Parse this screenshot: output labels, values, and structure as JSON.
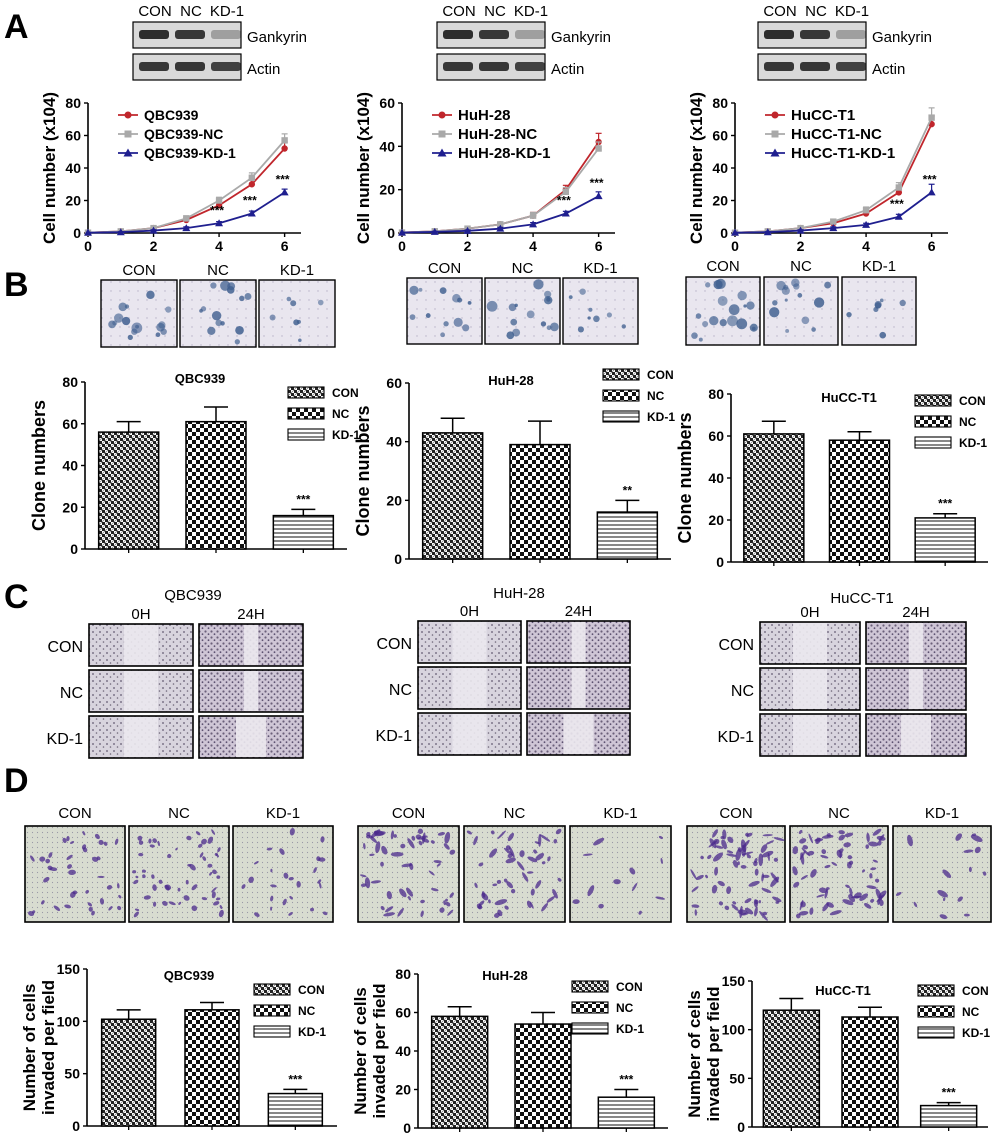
{
  "panel_letters": [
    "A",
    "B",
    "C",
    "D"
  ],
  "colors": {
    "con": "#c0262c",
    "nc": "#a9a9a9",
    "kd": "#1f1f8f",
    "blot_bg": "#d9d9d9",
    "colony_bg": "#eeeaf2",
    "wound_cells": "#8a8296",
    "invasion_bg": "#dde3cf",
    "invasion_cells": "#4b2a8c"
  },
  "panelA": {
    "blot_lanes": [
      "CON",
      "NC",
      "KD-1"
    ],
    "blot_rows": [
      "Gankyrin",
      "Actin"
    ],
    "ylabel": "Cell number (x10",
    "ylabel_exp": "4",
    "ylabel_close": ")"
  },
  "panelB": {
    "image_labels": [
      "CON",
      "NC",
      "KD-1"
    ],
    "ylabel": "Clone numbers"
  },
  "panelC": {
    "cells": [
      "QBC939",
      "HuH-28",
      "HuCC-T1"
    ],
    "times": [
      "0H",
      "24H"
    ],
    "rows": [
      "CON",
      "NC",
      "KD-1"
    ]
  },
  "panelD": {
    "image_labels": [
      "CON",
      "NC",
      "KD-1"
    ],
    "ylabel1": "Number of cells",
    "ylabel2": "invaded per field"
  },
  "chart_data": [
    {
      "id": "A1",
      "type": "line",
      "x": [
        0,
        1,
        2,
        3,
        4,
        5,
        6
      ],
      "xticks": [
        0,
        2,
        4,
        6
      ],
      "xlim": [
        0,
        6.5
      ],
      "ylim": [
        0,
        80
      ],
      "yticks": [
        0,
        20,
        40,
        60,
        80
      ],
      "ylabel": "Cell number (x10⁴)",
      "series": [
        {
          "name": "QBC939",
          "values": [
            0.2,
            1,
            3,
            8,
            17,
            30,
            52
          ],
          "err": [
            0,
            0.5,
            0.8,
            1.5,
            2,
            3,
            4
          ]
        },
        {
          "name": "QBC939-NC",
          "values": [
            0.2,
            1,
            3,
            9,
            20,
            34,
            57
          ],
          "err": [
            0,
            0.5,
            0.8,
            1.5,
            2,
            3,
            4
          ]
        },
        {
          "name": "QBC939-KD-1",
          "values": [
            0.2,
            0.5,
            1.5,
            3,
            6,
            12,
            25
          ],
          "err": [
            0,
            0.3,
            0.5,
            0.8,
            1,
            1.5,
            2
          ]
        }
      ],
      "annotations": [
        {
          "x": 4,
          "y": 6,
          "text": "***"
        },
        {
          "x": 5,
          "y": 12,
          "text": "***"
        },
        {
          "x": 6,
          "y": 25,
          "text": "***"
        }
      ]
    },
    {
      "id": "A2",
      "type": "line",
      "x": [
        0,
        1,
        2,
        3,
        4,
        5,
        6
      ],
      "xticks": [
        0,
        2,
        4,
        6
      ],
      "xlim": [
        0,
        6.5
      ],
      "ylim": [
        0,
        60
      ],
      "yticks": [
        0,
        20,
        40,
        60
      ],
      "ylabel": "Cell number (x10⁴)",
      "series": [
        {
          "name": "HuH-28",
          "values": [
            0.2,
            0.8,
            2,
            4,
            8,
            20,
            42
          ],
          "err": [
            0,
            0.4,
            0.5,
            0.8,
            1.5,
            2,
            4
          ]
        },
        {
          "name": "HuH-28-NC",
          "values": [
            0.2,
            0.8,
            2,
            4,
            8,
            19,
            39
          ],
          "err": [
            0,
            0.4,
            0.5,
            0.8,
            1.5,
            2,
            3
          ]
        },
        {
          "name": "HuH-28-KD-1",
          "values": [
            0.2,
            0.5,
            1,
            2,
            4,
            9,
            17
          ],
          "err": [
            0,
            0.3,
            0.4,
            0.6,
            0.8,
            1,
            2
          ]
        }
      ],
      "annotations": [
        {
          "x": 5,
          "y": 9,
          "text": "***"
        },
        {
          "x": 6,
          "y": 17,
          "text": "***"
        }
      ]
    },
    {
      "id": "A3",
      "type": "line",
      "x": [
        0,
        1,
        2,
        3,
        4,
        5,
        6
      ],
      "xticks": [
        0,
        2,
        4,
        6
      ],
      "xlim": [
        0,
        6.5
      ],
      "ylim": [
        0,
        80
      ],
      "yticks": [
        0,
        20,
        40,
        60,
        80
      ],
      "ylabel": "Cell number (x10⁴)",
      "series": [
        {
          "name": "HuCC-T1",
          "values": [
            0.2,
            1,
            3,
            6,
            12,
            25,
            67
          ],
          "err": [
            0,
            0.5,
            0.8,
            1.2,
            2,
            3,
            5
          ]
        },
        {
          "name": "HuCC-T1-NC",
          "values": [
            0.2,
            1,
            3,
            7,
            14,
            28,
            71
          ],
          "err": [
            0,
            0.5,
            0.8,
            1.5,
            2,
            3,
            6
          ]
        },
        {
          "name": "HuCC-T1-KD-1",
          "values": [
            0.2,
            0.5,
            1.5,
            3,
            5,
            10,
            25
          ],
          "err": [
            0,
            0.3,
            0.5,
            0.8,
            1,
            1.5,
            5
          ]
        }
      ],
      "annotations": [
        {
          "x": 5,
          "y": 10,
          "text": "***"
        },
        {
          "x": 6,
          "y": 25,
          "text": "***"
        }
      ]
    },
    {
      "id": "B1",
      "type": "bar",
      "title": "QBC939",
      "categories": [
        "CON",
        "NC",
        "KD-1"
      ],
      "values": [
        56,
        61,
        16
      ],
      "err": [
        5,
        7,
        3
      ],
      "ylim": [
        0,
        80
      ],
      "yticks": [
        0,
        20,
        40,
        60,
        80
      ],
      "ylabel": "Clone numbers",
      "annotations": [
        {
          "category": "KD-1",
          "text": "***"
        }
      ]
    },
    {
      "id": "B2",
      "type": "bar",
      "title": "HuH-28",
      "categories": [
        "CON",
        "NC",
        "KD-1"
      ],
      "values": [
        43,
        39,
        16
      ],
      "err": [
        5,
        8,
        4
      ],
      "ylim": [
        0,
        60
      ],
      "yticks": [
        0,
        20,
        40,
        60
      ],
      "ylabel": "Clone numbers",
      "annotations": [
        {
          "category": "KD-1",
          "text": "**"
        }
      ]
    },
    {
      "id": "B3",
      "type": "bar",
      "title": "HuCC-T1",
      "categories": [
        "CON",
        "NC",
        "KD-1"
      ],
      "values": [
        61,
        58,
        21
      ],
      "err": [
        6,
        4,
        2
      ],
      "ylim": [
        0,
        80
      ],
      "yticks": [
        0,
        20,
        40,
        60,
        80
      ],
      "ylabel": "Clone numbers",
      "annotations": [
        {
          "category": "KD-1",
          "text": "***"
        }
      ]
    },
    {
      "id": "D1",
      "type": "bar",
      "title": "QBC939",
      "categories": [
        "CON",
        "NC",
        "KD-1"
      ],
      "values": [
        102,
        111,
        31
      ],
      "err": [
        9,
        7,
        4
      ],
      "ylim": [
        0,
        150
      ],
      "yticks": [
        0,
        50,
        100,
        150
      ],
      "ylabel": "Number of cells invaded per field",
      "annotations": [
        {
          "category": "KD-1",
          "text": "***"
        }
      ]
    },
    {
      "id": "D2",
      "type": "bar",
      "title": "HuH-28",
      "categories": [
        "CON",
        "NC",
        "KD-1"
      ],
      "values": [
        58,
        54,
        16
      ],
      "err": [
        5,
        6,
        4
      ],
      "ylim": [
        0,
        80
      ],
      "yticks": [
        0,
        20,
        40,
        60,
        80
      ],
      "ylabel": "Number of cells invaded per field",
      "annotations": [
        {
          "category": "KD-1",
          "text": "***"
        }
      ]
    },
    {
      "id": "D3",
      "type": "bar",
      "title": "HuCC-T1",
      "categories": [
        "CON",
        "NC",
        "KD-1"
      ],
      "values": [
        120,
        113,
        22
      ],
      "err": [
        12,
        10,
        3
      ],
      "ylim": [
        0,
        150
      ],
      "yticks": [
        0,
        50,
        100,
        150
      ],
      "ylabel": "Number of cells invaded per field",
      "annotations": [
        {
          "category": "KD-1",
          "text": "***"
        }
      ]
    }
  ]
}
